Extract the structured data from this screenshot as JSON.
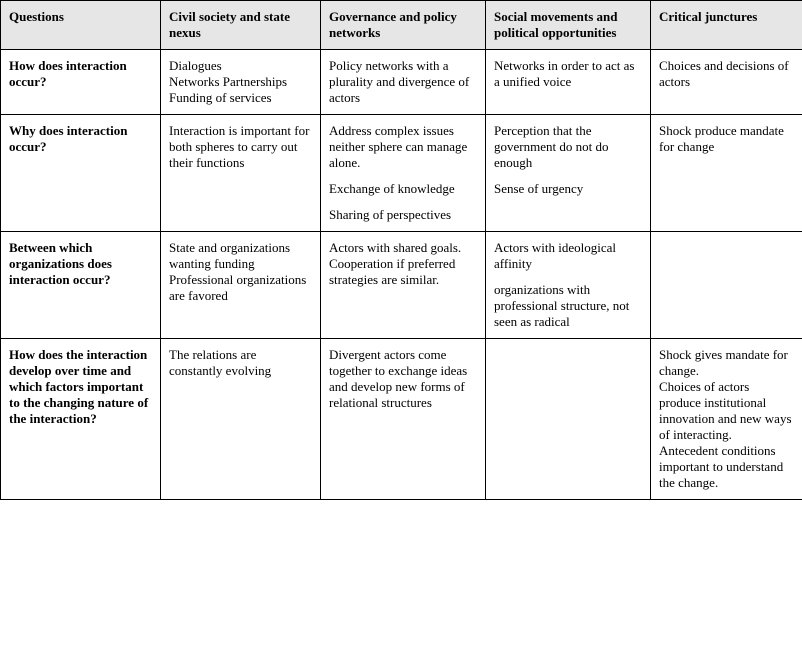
{
  "colors": {
    "header_bg": "#e6e6e6",
    "border": "#000000",
    "text": "#000000",
    "page_bg": "#ffffff"
  },
  "typography": {
    "font_family": "Times New Roman",
    "base_fontsize_pt": 10
  },
  "columns": [
    "Questions",
    "Civil society and state nexus",
    "Governance and policy networks",
    "Social movements and political opportunities",
    "Critical junctures"
  ],
  "rows": [
    {
      "question": "How does interaction occur?",
      "cells": [
        [
          "Dialogues\nNetworks Partnerships\nFunding of services"
        ],
        [
          "Policy networks with a plurality and divergence of actors"
        ],
        [
          "Networks in order to act as a unified voice"
        ],
        [
          "Choices and decisions of actors"
        ]
      ]
    },
    {
      "question": "Why does interaction occur?",
      "cells": [
        [
          "Interaction is important for both spheres to carry out their functions"
        ],
        [
          "Address complex issues neither sphere can manage alone.",
          "Exchange of knowledge",
          "Sharing of perspectives"
        ],
        [
          "Perception that the government do not do enough",
          "Sense of urgency"
        ],
        [
          "Shock produce mandate for change"
        ]
      ]
    },
    {
      "question": "Between which organizations does interaction occur?",
      "cells": [
        [
          "State and organizations wanting funding Professional organizations are favored"
        ],
        [
          "Actors with shared goals. Cooperation if preferred strategies are similar."
        ],
        [
          "Actors with ideological affinity",
          "organizations with professional structure, not seen as radical"
        ],
        [
          ""
        ]
      ]
    },
    {
      "question": "How does the interaction develop over time and which factors important to the changing nature of the interaction?",
      "cells": [
        [
          "The relations are constantly evolving"
        ],
        [
          "Divergent actors come together to exchange ideas and develop new forms of relational structures"
        ],
        [
          ""
        ],
        [
          "Shock gives mandate for change.\nChoices of actors produce institutional innovation and new ways of interacting.\nAntecedent conditions important to understand the change."
        ]
      ]
    }
  ]
}
